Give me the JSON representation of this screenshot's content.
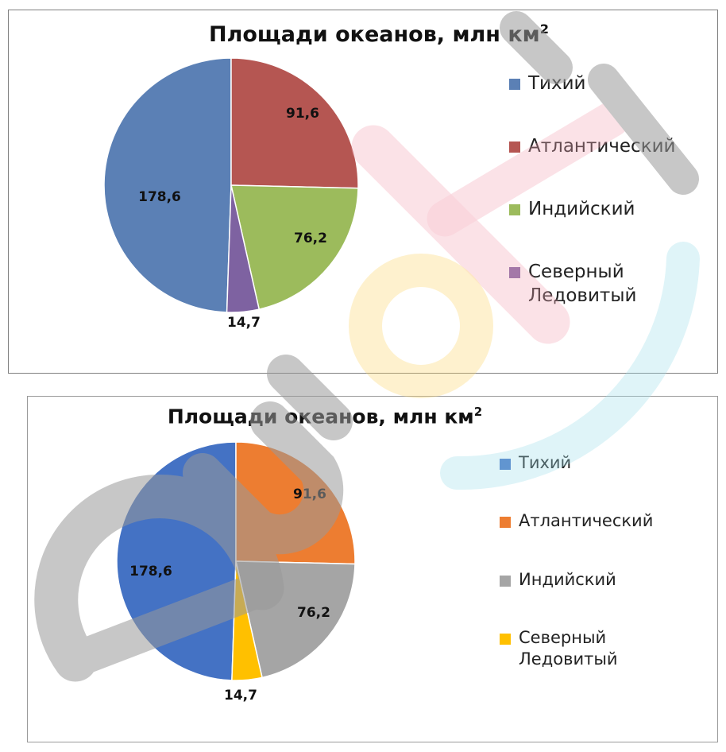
{
  "chart_data": [
    {
      "type": "pie",
      "title": "Площади океанов, млн км",
      "title_superscript": "2",
      "categories": [
        "Тихий",
        "Атлантический",
        "Индийский",
        "Северный Ледовитый"
      ],
      "values": [
        178.6,
        91.6,
        76.2,
        14.7
      ],
      "value_labels": [
        "178,6",
        "91,6",
        "76,2",
        "14,7"
      ],
      "colors": [
        "#5b80b5",
        "#b55652",
        "#9cbb5c",
        "#7e62a1"
      ],
      "legend_position": "right"
    },
    {
      "type": "pie",
      "title": "Площади океанов, млн км",
      "title_superscript": "2",
      "categories": [
        "Тихий",
        "Атлантический",
        "Индийский",
        "Северный Ледовитый"
      ],
      "values": [
        178.6,
        91.6,
        76.2,
        14.7
      ],
      "value_labels": [
        "178,6",
        "91,6",
        "76,2",
        "14,7"
      ],
      "colors": [
        "#4472c4",
        "#ed7d31",
        "#a5a5a5",
        "#ffc000"
      ],
      "legend_position": "right"
    }
  ],
  "watermark": {
    "icon": "eurok-logo-icon",
    "colors": [
      "#b9b9b9",
      "#f7c6d0",
      "#fde39a",
      "#bfeaf0"
    ]
  }
}
